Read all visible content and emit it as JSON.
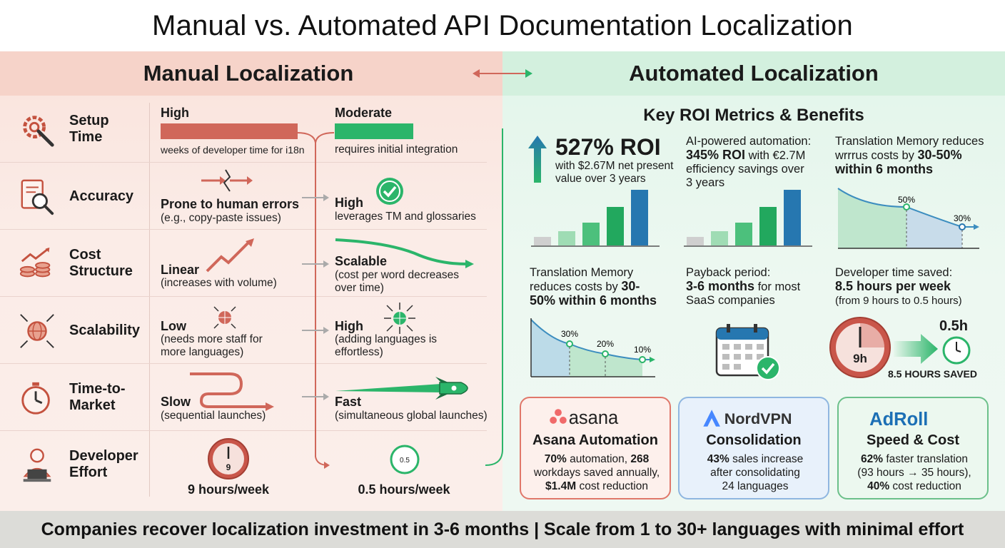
{
  "title": "Manual vs. Automated API Documentation Localization",
  "manual": {
    "header": "Manual Localization",
    "rows": [
      {
        "label": "Setup\nTime",
        "icon": "gear-wrench-icon",
        "value": "High",
        "note": "weeks of developer time for i18n"
      },
      {
        "label": "Accuracy",
        "icon": "document-magnifier-icon",
        "value": "Prone to human errors",
        "note": "(e.g., copy-paste issues)"
      },
      {
        "label": "Cost\nStructure",
        "icon": "coins-chart-icon",
        "value": "Linear",
        "note": "(increases with volume)"
      },
      {
        "label": "Scalability",
        "icon": "globe-arrows-icon",
        "value": "Low",
        "note": "(needs more staff for\nmore languages)"
      },
      {
        "label": "Time-to-\nMarket",
        "icon": "stopwatch-icon",
        "value": "Slow",
        "note": "(sequential launches)"
      },
      {
        "label": "Developer\nEffort",
        "icon": "developer-laptop-icon",
        "value": "9 hours/week",
        "note": ""
      }
    ]
  },
  "automated_rows": [
    {
      "value": "Moderate",
      "note": "requires initial integration"
    },
    {
      "value": "High",
      "note": "leverages TM and glossaries"
    },
    {
      "value": "Scalable",
      "note": "(cost per word decreases\nover time)"
    },
    {
      "value": "High",
      "note": "(adding languages is\neffortless)"
    },
    {
      "value": "Fast",
      "note": "(simultaneous global launches)"
    },
    {
      "value": "0.5 hours/week",
      "note": ""
    }
  ],
  "automated": {
    "header": "Automated Localization",
    "roi_title": "Key ROI Metrics & Benefits",
    "metric1": {
      "big": "527% ROI",
      "text": "with $2.67M net present\nvalue over 3 years"
    },
    "metric2": {
      "line1": "AI-powered automation:",
      "bold": "345% ROI",
      "rest": " with €2.7M\nefficiency savings over\n3 years"
    },
    "metric3": {
      "line1": "Translation Memory reduces\nwrrrus costs by ",
      "bold": "30-50%\nwithin 6 months",
      "mark1": "50%",
      "mark2": "30%"
    },
    "metric4": {
      "line1": "Translation Memory\nreduces costs by ",
      "bold": "30-\n50% within 6 months",
      "marks": [
        "30%",
        "20%",
        "10%"
      ]
    },
    "metric5": {
      "line1": "Payback period:",
      "bold": "3-6 months",
      "rest": " for most\nSaaS companies"
    },
    "metric6": {
      "line1": "Developer time saved:",
      "bold": "8.5 hours per week",
      "rest": "(from 9 hours to 0.5 hours)",
      "clock_left": "9h",
      "clock_right": "0.5h",
      "saved": "8.5 HOURS SAVED"
    },
    "cards": [
      {
        "logo": "asana",
        "title": "Asana Automation",
        "body_bold1": "70%",
        "body": " automation, ",
        "body_bold2": "268",
        "body2": "\nworkdays saved annually,\n",
        "body_bold3": "$1.4M",
        "body3": " cost reduction",
        "color": "#e0776a"
      },
      {
        "logo": "NordVPN",
        "title": "Consolidation",
        "body_bold1": "43%",
        "body": " sales increase\nafter consolidating\n24 languages",
        "color": "#8fb6e0"
      },
      {
        "logo": "AdRoll",
        "title": "Speed & Cost",
        "body_bold1": "62%",
        "body": " faster translation\n(93 hours → 35 hours),\n",
        "body_bold2": "40%",
        "body2": " cost reduction",
        "color": "#6cc08a"
      }
    ]
  },
  "clock_labels": {
    "manual": "9",
    "auto": "0.5"
  },
  "footer": "Companies recover localization investment in 3-6 months | Scale from 1 to 30+ languages with minimal effort",
  "colors": {
    "manual_accent": "#d0675a",
    "auto_accent": "#2bb56a",
    "blue": "#2677b0"
  }
}
